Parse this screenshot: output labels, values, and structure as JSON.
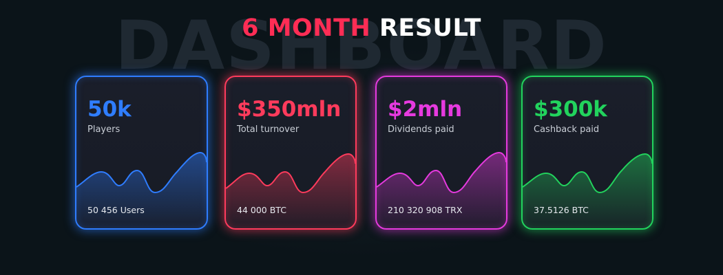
{
  "header": {
    "watermark": "DASHBOARD",
    "title_accent": "6 MONTH",
    "title_rest": "RESULT",
    "accent_color": "#ff2d55"
  },
  "cards": [
    {
      "value": "50k",
      "label": "Players",
      "detail": "50 456 Users",
      "color": "#2f7dff"
    },
    {
      "value": "$350mln",
      "label": "Total turnover",
      "detail": "44 000 BTC",
      "color": "#ff3b5c"
    },
    {
      "value": "$2mln",
      "label": "Dividends paid",
      "detail": "210 320 908 TRX",
      "color": "#e63adf"
    },
    {
      "value": "$300k",
      "label": "Cashback paid",
      "detail": "37.5126 BTC",
      "color": "#22d35d"
    }
  ]
}
